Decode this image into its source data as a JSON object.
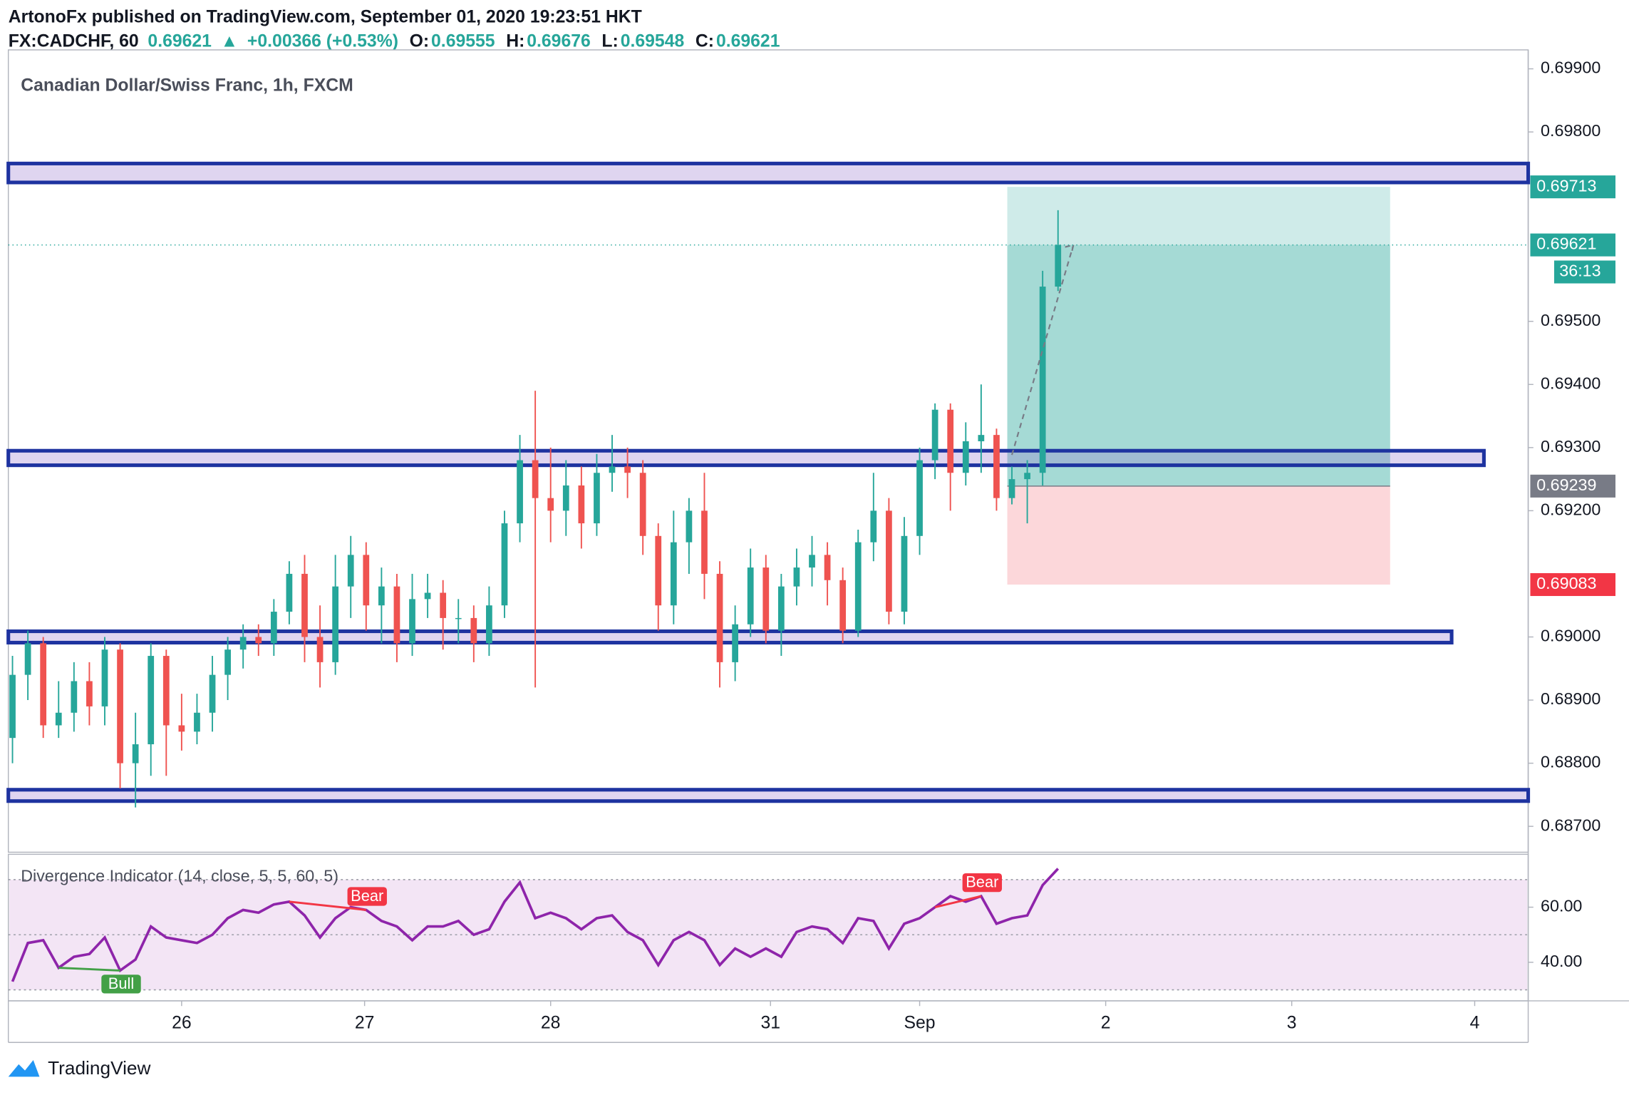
{
  "header": {
    "publisher": "ArtonoFx published on TradingView.com, September 01, 2020 19:23:51 HKT",
    "symbol": "FX:CADCHF, 60",
    "price": "0.69621",
    "arrow": "▲",
    "change": "+0.00366 (+0.53%)",
    "ohlc": [
      {
        "key": "O:",
        "value": "0.69555"
      },
      {
        "key": "H:",
        "value": "0.69676"
      },
      {
        "key": "L:",
        "value": "0.69548"
      },
      {
        "key": "C:",
        "value": "0.69621"
      }
    ]
  },
  "chart_data": [
    {
      "type": "candlestick",
      "title": "Canadian Dollar/Swiss Franc, 1h, FXCM",
      "up_color": "#26a69a",
      "down_color": "#ef5350",
      "candles": [
        [
          0.6884,
          0.6897,
          0.688,
          0.6894
        ],
        [
          0.6894,
          0.6901,
          0.689,
          0.6899
        ],
        [
          0.6899,
          0.69,
          0.6884,
          0.6886
        ],
        [
          0.6886,
          0.6893,
          0.6884,
          0.6888
        ],
        [
          0.6888,
          0.6896,
          0.6885,
          0.6893
        ],
        [
          0.6893,
          0.6896,
          0.6886,
          0.6889
        ],
        [
          0.6889,
          0.69,
          0.6886,
          0.6898
        ],
        [
          0.6898,
          0.6899,
          0.6876,
          0.688
        ],
        [
          0.688,
          0.6888,
          0.6873,
          0.6883
        ],
        [
          0.6883,
          0.6899,
          0.6878,
          0.6897
        ],
        [
          0.6897,
          0.6898,
          0.6878,
          0.6886
        ],
        [
          0.6886,
          0.6891,
          0.6882,
          0.6885
        ],
        [
          0.6885,
          0.6891,
          0.6883,
          0.6888
        ],
        [
          0.6888,
          0.6897,
          0.6885,
          0.6894
        ],
        [
          0.6894,
          0.69,
          0.689,
          0.6898
        ],
        [
          0.6898,
          0.6902,
          0.6895,
          0.69
        ],
        [
          0.69,
          0.6902,
          0.6897,
          0.6899
        ],
        [
          0.6899,
          0.6906,
          0.6897,
          0.6904
        ],
        [
          0.6904,
          0.6912,
          0.6902,
          0.691
        ],
        [
          0.691,
          0.6913,
          0.6896,
          0.69
        ],
        [
          0.69,
          0.6905,
          0.6892,
          0.6896
        ],
        [
          0.6896,
          0.6913,
          0.6894,
          0.6908
        ],
        [
          0.6908,
          0.6916,
          0.6903,
          0.6913
        ],
        [
          0.6913,
          0.6915,
          0.6901,
          0.6905
        ],
        [
          0.6905,
          0.6911,
          0.6899,
          0.6908
        ],
        [
          0.6908,
          0.691,
          0.6896,
          0.6899
        ],
        [
          0.6899,
          0.691,
          0.6897,
          0.6906
        ],
        [
          0.6906,
          0.691,
          0.6903,
          0.6907
        ],
        [
          0.6907,
          0.6909,
          0.6898,
          0.6903
        ],
        [
          0.6903,
          0.6906,
          0.6899,
          0.6903
        ],
        [
          0.6903,
          0.6905,
          0.6896,
          0.6899
        ],
        [
          0.6899,
          0.6908,
          0.6897,
          0.6905
        ],
        [
          0.6905,
          0.692,
          0.6903,
          0.6918
        ],
        [
          0.6918,
          0.6932,
          0.6915,
          0.6928
        ],
        [
          0.6928,
          0.6939,
          0.6892,
          0.6922
        ],
        [
          0.6922,
          0.693,
          0.6915,
          0.692
        ],
        [
          0.692,
          0.6928,
          0.6916,
          0.6924
        ],
        [
          0.6924,
          0.6927,
          0.6914,
          0.6918
        ],
        [
          0.6918,
          0.6929,
          0.6916,
          0.6926
        ],
        [
          0.6926,
          0.6932,
          0.6923,
          0.6927
        ],
        [
          0.6927,
          0.693,
          0.6922,
          0.6926
        ],
        [
          0.6926,
          0.6928,
          0.6913,
          0.6916
        ],
        [
          0.6916,
          0.6918,
          0.6901,
          0.6905
        ],
        [
          0.6905,
          0.692,
          0.6902,
          0.6915
        ],
        [
          0.6915,
          0.6922,
          0.691,
          0.692
        ],
        [
          0.692,
          0.6926,
          0.6906,
          0.691
        ],
        [
          0.691,
          0.6912,
          0.6892,
          0.6896
        ],
        [
          0.6896,
          0.6905,
          0.6893,
          0.6902
        ],
        [
          0.6902,
          0.6914,
          0.69,
          0.6911
        ],
        [
          0.6911,
          0.6913,
          0.6899,
          0.6901
        ],
        [
          0.6901,
          0.691,
          0.6897,
          0.6908
        ],
        [
          0.6908,
          0.6914,
          0.6905,
          0.6911
        ],
        [
          0.6911,
          0.6916,
          0.6908,
          0.6913
        ],
        [
          0.6913,
          0.6915,
          0.6905,
          0.6909
        ],
        [
          0.6909,
          0.6911,
          0.6899,
          0.6901
        ],
        [
          0.6901,
          0.6917,
          0.69,
          0.6915
        ],
        [
          0.6915,
          0.6926,
          0.6912,
          0.692
        ],
        [
          0.692,
          0.6922,
          0.6902,
          0.6904
        ],
        [
          0.6904,
          0.6919,
          0.6902,
          0.6916
        ],
        [
          0.6916,
          0.693,
          0.6913,
          0.6928
        ],
        [
          0.6928,
          0.6937,
          0.6925,
          0.6936
        ],
        [
          0.6936,
          0.6937,
          0.692,
          0.6926
        ],
        [
          0.6926,
          0.6934,
          0.6924,
          0.6931
        ],
        [
          0.6931,
          0.694,
          0.6926,
          0.6932
        ],
        [
          0.6932,
          0.6933,
          0.692,
          0.6922
        ],
        [
          0.6922,
          0.6927,
          0.6921,
          0.6925
        ],
        [
          0.6925,
          0.6928,
          0.6918,
          0.6926
        ],
        [
          0.6926,
          0.6958,
          0.6924,
          0.69555
        ],
        [
          0.69555,
          0.69676,
          0.69548,
          0.69621
        ]
      ],
      "xlim": [
        -0.27,
        98.58
      ],
      "xticks": [
        {
          "value": 11,
          "label": "26"
        },
        {
          "value": 22.9,
          "label": "27"
        },
        {
          "value": 35,
          "label": "28"
        },
        {
          "value": 49.3,
          "label": "31"
        },
        {
          "value": 59,
          "label": "Sep"
        },
        {
          "value": 71.1,
          "label": "2"
        },
        {
          "value": 83.2,
          "label": "3"
        },
        {
          "value": 95.1,
          "label": "4"
        }
      ],
      "ylim": [
        0.68659,
        0.6993
      ],
      "yticks": [
        {
          "value": 0.687,
          "label": "0.68700"
        },
        {
          "value": 0.688,
          "label": "0.68800"
        },
        {
          "value": 0.689,
          "label": "0.68900"
        },
        {
          "value": 0.69,
          "label": "0.69000"
        },
        {
          "value": 0.692,
          "label": "0.69200"
        },
        {
          "value": 0.693,
          "label": "0.69300"
        },
        {
          "value": 0.694,
          "label": "0.69400"
        },
        {
          "value": 0.695,
          "label": "0.69500"
        },
        {
          "value": 0.698,
          "label": "0.69800"
        },
        {
          "value": 0.699,
          "label": "0.69900"
        }
      ],
      "zones": [
        [
          0.6975,
          0.6972
        ],
        [
          0.69295,
          0.69272
        ],
        [
          0.69009,
          0.68991
        ],
        [
          0.68758,
          0.6874
        ]
      ],
      "zone_color": "#1e33a0",
      "position": {
        "target": 0.69713,
        "entry": 0.69239,
        "stop": 0.69083
      },
      "last_price": 0.69621,
      "countdown": "36:13"
    },
    {
      "type": "line",
      "title": "Divergence Indicator (14, close, 5, 5, 60, 5)",
      "color": "#8e24aa",
      "values": [
        33,
        47,
        48,
        38,
        42,
        43,
        49,
        37,
        41,
        53,
        49,
        48,
        47,
        50,
        56,
        59,
        58,
        61,
        62,
        57,
        49,
        56,
        60,
        59,
        55,
        53,
        48,
        53,
        53,
        55,
        50,
        52,
        62,
        69,
        56,
        58,
        56,
        52,
        56,
        57,
        51,
        48,
        39,
        48,
        51,
        48,
        39,
        45,
        42,
        45,
        42,
        51,
        53,
        52,
        47,
        56,
        55,
        45,
        54,
        56,
        60,
        64,
        62,
        64,
        54,
        56,
        57,
        68,
        74
      ],
      "ylim": [
        26,
        79.2
      ],
      "yticks": [
        {
          "value": 60,
          "label": "60.00"
        },
        {
          "value": 40,
          "label": "40.00"
        }
      ],
      "levels": [
        70,
        50,
        30
      ],
      "divergences": [
        {
          "text": "Bull",
          "color": "#43a047"
        },
        {
          "text": "Bear",
          "color": "#f23645"
        },
        {
          "text": "Bear",
          "color": "#f23645"
        }
      ]
    }
  ],
  "footer": "TradingView"
}
